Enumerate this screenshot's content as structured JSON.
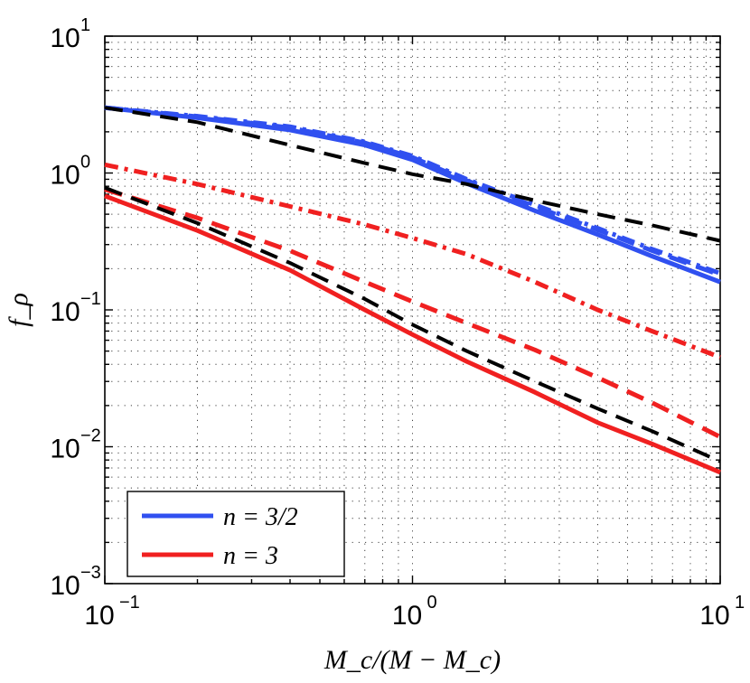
{
  "chart_data": {
    "type": "line",
    "xscale": "log",
    "yscale": "log",
    "xlim": [
      0.1,
      10
    ],
    "ylim": [
      0.001,
      10
    ],
    "grid": true,
    "legend_position": "bottom-left",
    "xlabel": "M_c/(M − M_c)",
    "ylabel": "f_ρ",
    "x_ticks": [
      {
        "base": "10",
        "exponent": "−1",
        "value": 0.1
      },
      {
        "base": "10",
        "exponent": "0",
        "value": 1
      },
      {
        "base": "10",
        "exponent": "1",
        "value": 10
      }
    ],
    "y_ticks": [
      {
        "base": "10",
        "exponent": "−3",
        "value": 0.001
      },
      {
        "base": "10",
        "exponent": "−2",
        "value": 0.01
      },
      {
        "base": "10",
        "exponent": "−1",
        "value": 0.1
      },
      {
        "base": "10",
        "exponent": "0",
        "value": 1
      },
      {
        "base": "10",
        "exponent": "1",
        "value": 10
      }
    ],
    "legend": [
      {
        "label": "n = 3/2",
        "color": "#3050f0"
      },
      {
        "label": "n = 3",
        "color": "#f02020"
      }
    ],
    "series": [
      {
        "name": "n = 3/2 solid",
        "color": "#3050f0",
        "style": "solid",
        "x": [
          0.1,
          0.2,
          0.4,
          0.7,
          1.0,
          1.5,
          2.5,
          4.0,
          6.0,
          10.0
        ],
        "y": [
          3.0,
          2.53,
          2.06,
          1.6,
          1.25,
          0.84,
          0.53,
          0.355,
          0.247,
          0.16
        ]
      },
      {
        "name": "n = 3/2 dashed",
        "color": "#3050f0",
        "style": "dashed",
        "x": [
          0.1,
          0.2,
          0.4,
          0.7,
          1.0,
          1.5,
          2.5,
          4.0,
          6.0,
          10.0
        ],
        "y": [
          3.0,
          2.58,
          2.14,
          1.66,
          1.3,
          0.88,
          0.57,
          0.385,
          0.271,
          0.18
        ]
      },
      {
        "name": "n = 3/2 dash-dot",
        "color": "#3050f0",
        "style": "dashdot",
        "x": [
          0.1,
          0.2,
          0.4,
          0.7,
          1.0,
          1.5,
          2.5,
          4.0,
          6.0,
          10.0
        ],
        "y": [
          3.0,
          2.6,
          2.18,
          1.69,
          1.33,
          0.9,
          0.585,
          0.395,
          0.278,
          0.185
        ]
      },
      {
        "name": "n = 3/2 reference (black dashed)",
        "color": "#000000",
        "style": "dashed",
        "x": [
          0.1,
          0.2,
          0.4,
          0.7,
          1.0,
          1.5,
          2.5,
          4.0,
          6.0,
          10.0
        ],
        "y": [
          3.0,
          2.35,
          1.6,
          1.18,
          0.98,
          0.83,
          0.63,
          0.5,
          0.415,
          0.32
        ]
      },
      {
        "name": "n = 3 solid",
        "color": "#f02020",
        "style": "solid",
        "x": [
          0.1,
          0.2,
          0.4,
          0.7,
          1.0,
          1.5,
          2.5,
          4.0,
          6.0,
          10.0
        ],
        "y": [
          0.68,
          0.38,
          0.195,
          0.1,
          0.066,
          0.042,
          0.025,
          0.015,
          0.0105,
          0.0065
        ]
      },
      {
        "name": "n = 3 dashed",
        "color": "#f02020",
        "style": "dashed",
        "x": [
          0.1,
          0.2,
          0.4,
          0.7,
          1.0,
          1.5,
          2.5,
          4.0,
          6.0,
          10.0
        ],
        "y": [
          0.76,
          0.47,
          0.27,
          0.16,
          0.115,
          0.08,
          0.051,
          0.032,
          0.021,
          0.0118
        ]
      },
      {
        "name": "n = 3 dash-dot",
        "color": "#f02020",
        "style": "dashdot",
        "x": [
          0.1,
          0.2,
          0.4,
          0.7,
          1.0,
          1.5,
          2.5,
          4.0,
          6.0,
          10.0
        ],
        "y": [
          1.15,
          0.83,
          0.57,
          0.42,
          0.335,
          0.255,
          0.16,
          0.1,
          0.07,
          0.045
        ]
      },
      {
        "name": "n = 3 reference (black dashed)",
        "color": "#000000",
        "style": "dashed",
        "x": [
          0.1,
          0.2,
          0.4,
          0.7,
          1.0,
          1.5,
          2.5,
          4.0,
          6.0,
          10.0
        ],
        "y": [
          0.78,
          0.43,
          0.22,
          0.12,
          0.078,
          0.05,
          0.03,
          0.019,
          0.013,
          0.0078
        ]
      }
    ]
  }
}
